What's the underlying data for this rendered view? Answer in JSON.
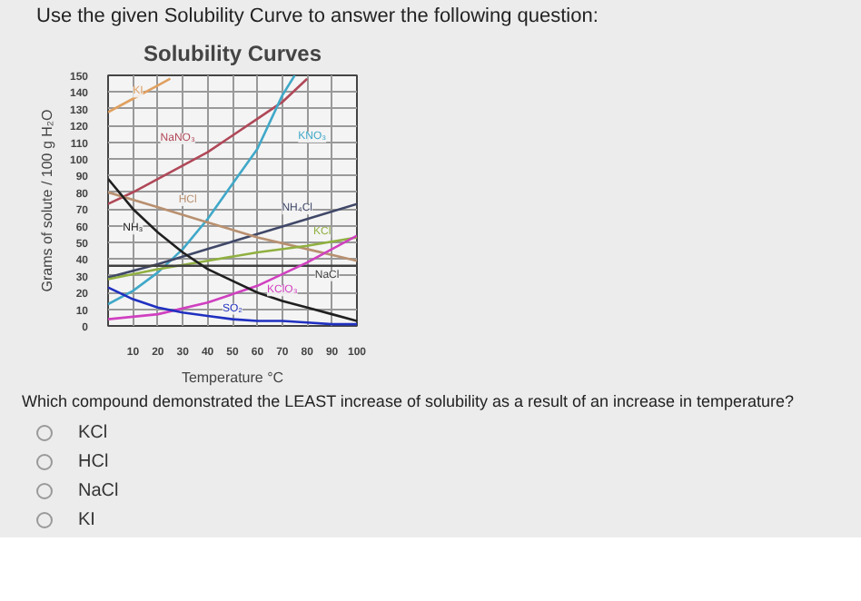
{
  "chart_data": {
    "type": "line",
    "title": "Solubility Curves",
    "xlabel": "Temperature °C",
    "ylabel": "Grams of solute / 100 g H₂O",
    "annotations": [
      "Use the given Solubility Curve to answer the following question:",
      "Which compound demonstrated the LEAST increase of solubility as a result of an increase in temperature?",
      "KCl",
      "HCl",
      "NaCl",
      "KI"
    ],
    "xlim": [
      0,
      100
    ],
    "ylim": [
      0,
      150
    ],
    "xticks": [
      {
        "value": 0,
        "label": null
      },
      10,
      20,
      30,
      40,
      50,
      60,
      70,
      80,
      90,
      100
    ],
    "yticks": [
      0,
      10,
      20,
      30,
      40,
      50,
      60,
      70,
      80,
      90,
      100,
      110,
      120,
      130,
      140,
      150
    ],
    "grid": true,
    "legend": false,
    "marker": "none",
    "line_style": "solid",
    "series": [
      {
        "name": "KI",
        "color": "#e0a060",
        "x": [
          0,
          10,
          20,
          25
        ],
        "values": [
          128,
          136,
          144,
          148
        ]
      },
      {
        "name": "NaNO₃",
        "color": "#b04858",
        "x": [
          0,
          10,
          20,
          30,
          40,
          50,
          60,
          70,
          80
        ],
        "values": [
          73,
          80,
          88,
          96,
          104,
          114,
          124,
          134,
          148
        ]
      },
      {
        "name": "KNO₃",
        "color": "#40a8c8",
        "x": [
          0,
          10,
          20,
          30,
          40,
          50,
          60,
          70,
          75
        ],
        "values": [
          13,
          21,
          32,
          46,
          64,
          85,
          106,
          138,
          150
        ]
      },
      {
        "name": "NH₄Cl",
        "color": "#404868",
        "x": [
          0,
          20,
          40,
          60,
          80,
          100
        ],
        "values": [
          29,
          37,
          46,
          55,
          64,
          73
        ]
      },
      {
        "name": "HCl",
        "color": "#b89070",
        "x": [
          0,
          20,
          40,
          60,
          80,
          100
        ],
        "values": [
          80,
          71,
          62,
          53,
          46,
          39
        ]
      },
      {
        "name": "KCl",
        "color": "#90b040",
        "x": [
          0,
          20,
          40,
          60,
          80,
          100
        ],
        "values": [
          28,
          34,
          39,
          44,
          48,
          53
        ]
      },
      {
        "name": "NaCl",
        "color": "#404040",
        "x": [
          0,
          100
        ],
        "values": [
          36,
          36
        ]
      },
      {
        "name": "KClO₃",
        "color": "#d040c0",
        "x": [
          0,
          20,
          40,
          60,
          80,
          100
        ],
        "values": [
          4,
          7,
          14,
          24,
          38,
          54
        ]
      },
      {
        "name": "NH₃",
        "color": "#202020",
        "x": [
          0,
          10,
          20,
          30,
          40,
          50,
          60,
          70,
          80,
          90,
          100
        ],
        "values": [
          88,
          70,
          56,
          44,
          34,
          27,
          20,
          15,
          11,
          7,
          3
        ]
      },
      {
        "name": "SO₂",
        "color": "#2030c0",
        "x": [
          0,
          10,
          20,
          30,
          40,
          50,
          60,
          70,
          80,
          90,
          100
        ],
        "values": [
          23,
          16,
          11,
          8,
          6,
          4,
          3,
          3,
          2,
          1,
          1
        ]
      }
    ]
  }
}
